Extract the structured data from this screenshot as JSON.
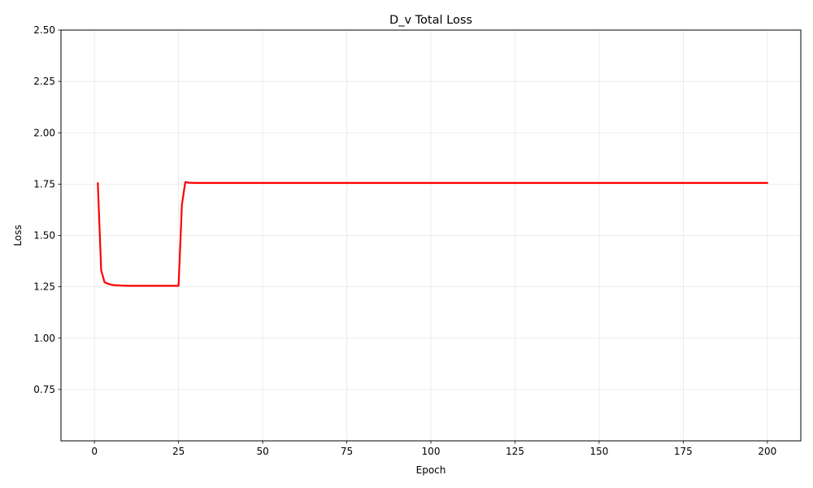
{
  "chart_data": {
    "type": "line",
    "title": "D_v Total Loss",
    "xlabel": "Epoch",
    "ylabel": "Loss",
    "xlim": [
      -9.95,
      209.95
    ],
    "ylim": [
      0.5,
      2.5
    ],
    "xticks": [
      0,
      25,
      50,
      75,
      100,
      125,
      150,
      175,
      200
    ],
    "yticks": [
      0.75,
      1.0,
      1.25,
      1.5,
      1.75,
      2.0,
      2.25,
      2.5
    ],
    "grid": true,
    "legend": "none",
    "series": [
      {
        "color": "#ff0000",
        "x": [
          1,
          2,
          3,
          4,
          5,
          6,
          7,
          8,
          9,
          10,
          12,
          15,
          18,
          20,
          22,
          24,
          25,
          26,
          27,
          28,
          30,
          50,
          100,
          150,
          200
        ],
        "values": [
          1.755,
          1.33,
          1.272,
          1.265,
          1.26,
          1.258,
          1.257,
          1.256,
          1.256,
          1.255,
          1.255,
          1.255,
          1.255,
          1.255,
          1.255,
          1.255,
          1.255,
          1.65,
          1.76,
          1.757,
          1.756,
          1.756,
          1.756,
          1.756,
          1.756
        ]
      }
    ]
  }
}
